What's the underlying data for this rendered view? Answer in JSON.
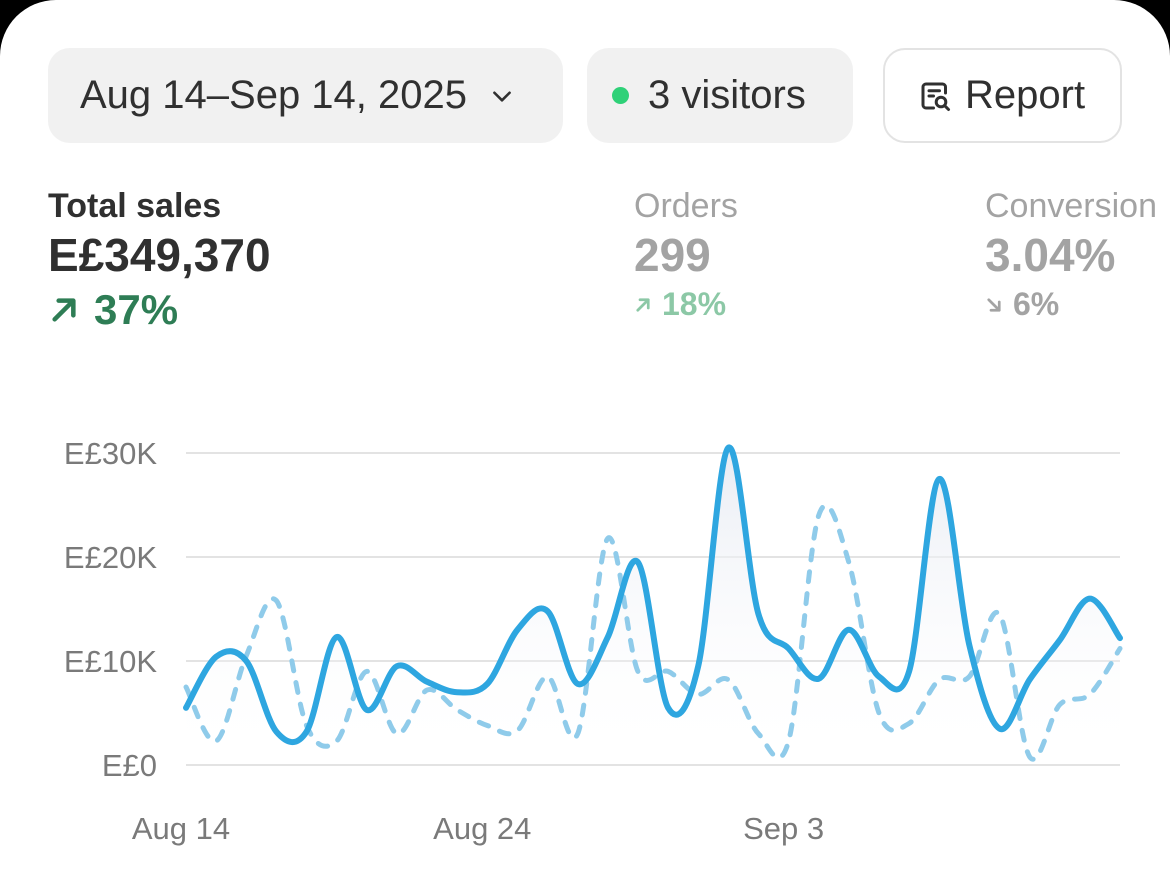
{
  "controls": {
    "date_range": "Aug 14–Sep 14, 2025",
    "visitors": "3 visitors",
    "report_label": "Report"
  },
  "icons": {
    "date_dropdown": "chevron-down-icon",
    "visitors_status": "live-dot-icon",
    "report": "report-search-icon",
    "trend_up": "arrow-up-right-icon",
    "trend_down": "arrow-down-right-icon"
  },
  "metrics": [
    {
      "label": "Total sales",
      "value": "E£349,370",
      "delta": "37%",
      "trend": "up"
    },
    {
      "label": "Orders",
      "value": "299",
      "delta": "18%",
      "trend": "up"
    },
    {
      "label": "Conversion",
      "value": "3.04%",
      "delta": "6%",
      "trend": "down"
    }
  ],
  "colors": {
    "current_series": "#2ea6e0",
    "comparison_series": "#8fcbea",
    "positive": "#2e7d55",
    "positive_muted": "#8cc8a6",
    "live_dot": "#2fd178"
  },
  "chart_data": {
    "type": "line",
    "ylim": [
      0,
      30000
    ],
    "yticks": [
      "E£0",
      "E£10K",
      "E£20K",
      "E£30K"
    ],
    "ytick_values": [
      0,
      10000,
      20000,
      30000
    ],
    "xticks": [
      "Aug 14",
      "Aug 24",
      "Sep 3"
    ],
    "xtick_days": [
      0,
      10,
      20
    ],
    "grid": true,
    "x_days": [
      0,
      1,
      2,
      3,
      4,
      5,
      6,
      7,
      8,
      9,
      10,
      11,
      12,
      13,
      14,
      15,
      16,
      17,
      18,
      19,
      20,
      21,
      22,
      23,
      24,
      25,
      26,
      27,
      28,
      29,
      30,
      31
    ],
    "series": [
      {
        "style": "solid",
        "values": [
          5500,
          10400,
          10000,
          3200,
          3200,
          12300,
          5300,
          9500,
          8000,
          7000,
          7800,
          13000,
          14800,
          7800,
          12300,
          19500,
          5500,
          9500,
          30500,
          14500,
          11200,
          8300,
          13000,
          8500,
          9000,
          27500,
          11500,
          3500,
          8200,
          12000,
          16000,
          12200
        ]
      },
      {
        "style": "dashed",
        "values": [
          7500,
          2300,
          10500,
          15800,
          3800,
          2300,
          9000,
          3000,
          7200,
          5300,
          3800,
          3300,
          8500,
          3000,
          21800,
          9000,
          9000,
          6800,
          8200,
          3000,
          2300,
          24000,
          19500,
          5000,
          4000,
          8200,
          8500,
          14500,
          800,
          5800,
          6800,
          11200
        ]
      }
    ]
  }
}
